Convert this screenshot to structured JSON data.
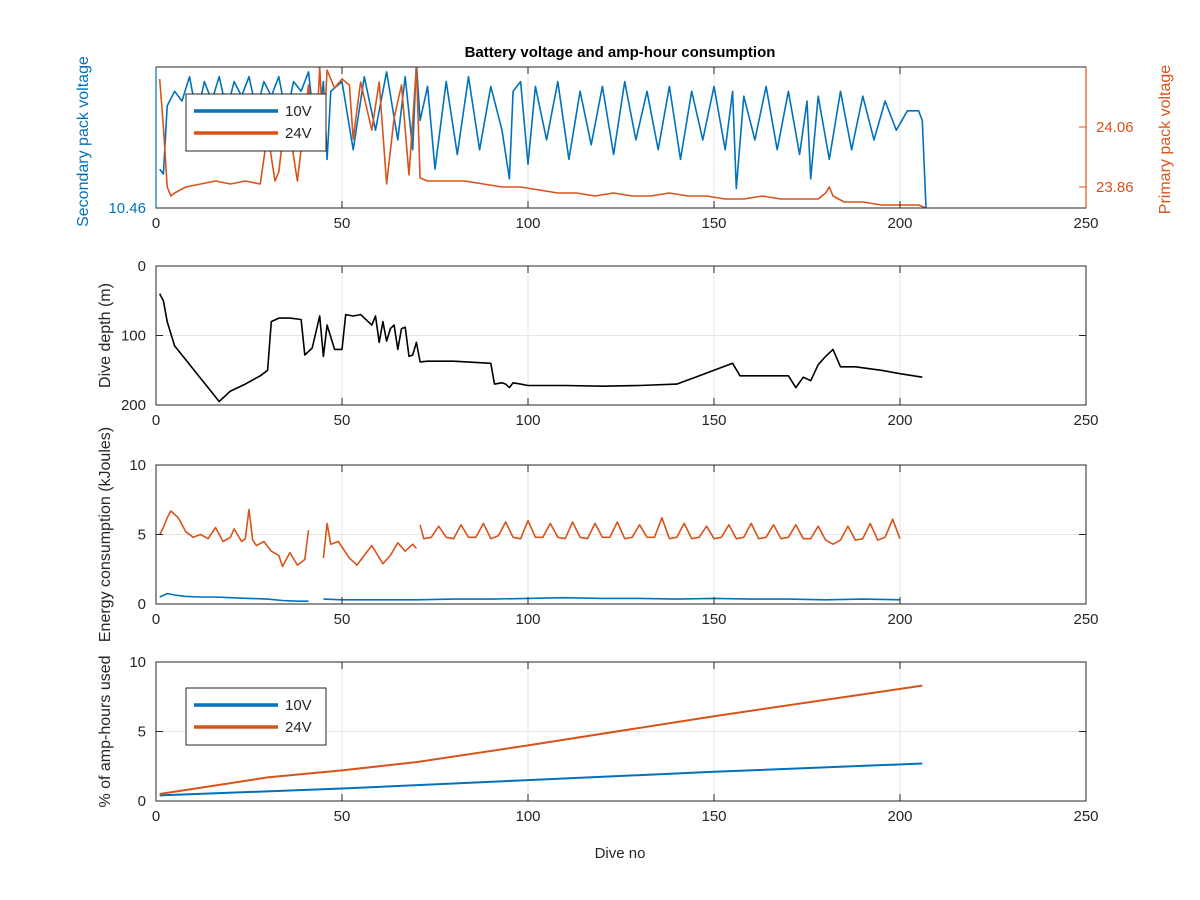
{
  "figure": {
    "title": "Battery voltage and amp-hour consumption",
    "xlabel": "Dive no"
  },
  "colors": {
    "series_10v": "#0072bd",
    "series_24v": "#d95319",
    "depth": "#000000",
    "grid": "#e6e6e6",
    "axes": "#262626"
  },
  "chart_data": [
    {
      "id": "voltage",
      "type": "line",
      "title": "Battery voltage and amp-hour consumption",
      "xlim": [
        0,
        250
      ],
      "xticks": [
        "0",
        "50",
        "100",
        "150",
        "200",
        "250"
      ],
      "ylabel_left": "Secondary pack voltage",
      "ylabel_right": "Primary pack voltage",
      "ylim_left": [
        10.46,
        10.75
      ],
      "yticks_left": [
        "10.46"
      ],
      "ylim_right": [
        23.79,
        24.26
      ],
      "yticks_right": [
        "24.06",
        "23.86"
      ],
      "grid": true,
      "legend": {
        "placement": "top-left",
        "entries": [
          "10V",
          "24V"
        ]
      },
      "series": [
        {
          "name": "10V",
          "axis": "left",
          "x": [
            1,
            2,
            3,
            5,
            7,
            9,
            11,
            13,
            15,
            17,
            19,
            21,
            23,
            25,
            27,
            29,
            31,
            33,
            35,
            37,
            39,
            41,
            43,
            45,
            46,
            47,
            50,
            53,
            56,
            59,
            62,
            65,
            67,
            69,
            70,
            71,
            73,
            75,
            78,
            81,
            84,
            87,
            90,
            93,
            95,
            96,
            98,
            100,
            102,
            105,
            108,
            111,
            114,
            117,
            120,
            123,
            126,
            129,
            132,
            135,
            138,
            141,
            144,
            147,
            150,
            153,
            155,
            156,
            158,
            161,
            164,
            167,
            170,
            173,
            175,
            176,
            178,
            181,
            184,
            187,
            190,
            193,
            196,
            199,
            202,
            205,
            206,
            207
          ],
          "values": [
            10.54,
            10.53,
            10.67,
            10.7,
            10.68,
            10.73,
            10.65,
            10.72,
            10.68,
            10.73,
            10.66,
            10.72,
            10.69,
            10.73,
            10.66,
            10.72,
            10.69,
            10.73,
            10.65,
            10.72,
            10.7,
            10.74,
            10.6,
            10.72,
            10.56,
            10.7,
            10.72,
            10.58,
            10.73,
            10.62,
            10.74,
            10.6,
            10.73,
            10.58,
            10.76,
            10.64,
            10.71,
            10.54,
            10.72,
            10.57,
            10.73,
            10.58,
            10.71,
            10.62,
            10.52,
            10.7,
            10.72,
            10.55,
            10.71,
            10.6,
            10.72,
            10.56,
            10.7,
            10.59,
            10.71,
            10.57,
            10.72,
            10.6,
            10.7,
            10.58,
            10.71,
            10.56,
            10.7,
            10.6,
            10.71,
            10.58,
            10.7,
            10.5,
            10.69,
            10.6,
            10.71,
            10.58,
            10.7,
            10.57,
            10.68,
            10.52,
            10.69,
            10.56,
            10.7,
            10.58,
            10.69,
            10.6,
            10.68,
            10.62,
            10.66,
            10.66,
            10.64,
            10.46
          ]
        },
        {
          "name": "24V",
          "axis": "right",
          "x": [
            1,
            2,
            3,
            4,
            5,
            8,
            12,
            16,
            20,
            24,
            28,
            30,
            32,
            33,
            35,
            38,
            41,
            43,
            44,
            45,
            46,
            48,
            50,
            52,
            53,
            55,
            58,
            60,
            62,
            64,
            66,
            68,
            70,
            71,
            73,
            78,
            83,
            88,
            93,
            98,
            103,
            108,
            113,
            118,
            123,
            128,
            133,
            138,
            143,
            148,
            153,
            158,
            163,
            168,
            173,
            178,
            180,
            181,
            182,
            185,
            190,
            195,
            200,
            205,
            207
          ],
          "values": [
            24.22,
            24.06,
            23.86,
            23.83,
            23.84,
            23.86,
            23.87,
            23.88,
            23.87,
            23.88,
            23.87,
            24.04,
            23.88,
            23.91,
            24.12,
            23.88,
            24.2,
            24.0,
            24.26,
            24.02,
            24.25,
            24.19,
            24.22,
            24.2,
            24.02,
            24.21,
            24.05,
            24.21,
            23.87,
            24.09,
            24.2,
            23.9,
            24.26,
            23.89,
            23.88,
            23.88,
            23.88,
            23.87,
            23.86,
            23.86,
            23.85,
            23.84,
            23.84,
            23.83,
            23.84,
            23.83,
            23.83,
            23.84,
            23.83,
            23.83,
            23.82,
            23.82,
            23.83,
            23.82,
            23.82,
            23.82,
            23.84,
            23.86,
            23.83,
            23.81,
            23.81,
            23.8,
            23.8,
            23.8,
            23.79
          ]
        }
      ]
    },
    {
      "id": "depth",
      "type": "line",
      "ylabel": "Dive depth (m)",
      "xlim": [
        0,
        250
      ],
      "xticks": [
        "0",
        "50",
        "100",
        "150",
        "200",
        "250"
      ],
      "ylim": [
        0,
        200
      ],
      "y_reversed": true,
      "yticks": [
        "0",
        "100",
        "200"
      ],
      "grid": true,
      "series": [
        {
          "name": "",
          "x": [
            1,
            2,
            3,
            5,
            8,
            11,
            14,
            17,
            20,
            24,
            28,
            30,
            31,
            33,
            36,
            39,
            40,
            42,
            44,
            45,
            46,
            48,
            50,
            51,
            53,
            55,
            58,
            59,
            60,
            61,
            62,
            63,
            64,
            65,
            66,
            67,
            68,
            69,
            70,
            71,
            73,
            80,
            90,
            91,
            93,
            94,
            95,
            96,
            98,
            100,
            110,
            120,
            130,
            140,
            145,
            150,
            155,
            157,
            159,
            165,
            170,
            172,
            174,
            176,
            178,
            180,
            182,
            184,
            188,
            195,
            200,
            206
          ],
          "values": [
            40,
            50,
            80,
            115,
            135,
            155,
            175,
            195,
            180,
            170,
            158,
            150,
            80,
            75,
            75,
            77,
            128,
            118,
            72,
            130,
            85,
            120,
            120,
            70,
            72,
            70,
            85,
            72,
            110,
            80,
            108,
            90,
            85,
            120,
            90,
            88,
            130,
            128,
            110,
            138,
            137,
            137,
            140,
            170,
            168,
            170,
            175,
            168,
            170,
            172,
            172,
            173,
            172,
            170,
            160,
            150,
            140,
            158,
            158,
            158,
            158,
            175,
            160,
            165,
            142,
            130,
            120,
            145,
            145,
            150,
            155,
            160
          ]
        }
      ]
    },
    {
      "id": "energy",
      "type": "line",
      "ylabel": "Energy consumption (kJoules)",
      "xlim": [
        0,
        250
      ],
      "xticks": [
        "0",
        "50",
        "100",
        "150",
        "200",
        "250"
      ],
      "ylim": [
        0,
        10
      ],
      "yticks": [
        "0",
        "5",
        "10"
      ],
      "grid": true,
      "series": [
        {
          "name": "10V",
          "segments": [
            {
              "x": [
                1,
                3,
                5,
                8,
                12,
                16,
                20,
                25,
                30,
                34,
                38,
                41
              ],
              "values": [
                0.5,
                0.75,
                0.65,
                0.55,
                0.5,
                0.5,
                0.45,
                0.4,
                0.35,
                0.25,
                0.2,
                0.2
              ]
            },
            {
              "x": [
                45,
                50,
                60,
                70,
                80,
                90,
                100,
                110,
                120,
                130,
                140,
                150,
                160,
                170,
                180,
                190,
                200
              ],
              "values": [
                0.35,
                0.3,
                0.3,
                0.3,
                0.35,
                0.35,
                0.4,
                0.45,
                0.4,
                0.4,
                0.35,
                0.4,
                0.35,
                0.35,
                0.3,
                0.35,
                0.3
              ]
            }
          ]
        },
        {
          "name": "24V",
          "segments": [
            {
              "x": [
                1,
                2,
                3,
                4,
                6,
                8,
                10,
                12,
                14,
                16,
                18,
                20,
                21,
                23,
                24,
                25,
                26,
                27,
                29,
                31,
                33,
                34,
                35,
                36,
                38,
                40,
                41
              ],
              "values": [
                5.0,
                5.5,
                6.2,
                6.7,
                6.2,
                5.2,
                4.8,
                5.0,
                4.7,
                5.5,
                4.5,
                4.8,
                5.4,
                4.5,
                4.7,
                6.8,
                4.6,
                4.2,
                4.5,
                3.8,
                3.5,
                2.7,
                3.2,
                3.7,
                2.8,
                3.2,
                5.3
              ]
            },
            {
              "x": [
                45,
                46,
                47,
                49,
                52,
                54,
                56,
                58,
                61,
                63,
                65,
                67,
                69,
                70
              ],
              "values": [
                3.3,
                5.8,
                4.3,
                4.5,
                3.3,
                2.8,
                3.5,
                4.2,
                2.9,
                3.5,
                4.4,
                3.8,
                4.3,
                4.0
              ]
            },
            {
              "x": [
                71,
                72,
                74,
                76,
                78,
                80,
                82,
                84,
                86,
                88,
                90,
                92,
                94,
                96,
                98,
                100,
                102,
                104,
                106,
                108,
                110,
                112,
                114,
                116,
                118,
                120,
                122,
                124,
                126,
                128,
                130,
                132,
                134,
                136,
                138,
                140,
                142,
                144,
                146,
                148,
                150,
                152,
                154,
                156,
                158,
                160,
                162,
                164,
                166,
                168,
                170,
                172,
                174,
                176,
                178,
                180,
                182,
                184,
                186,
                188,
                190,
                192,
                194,
                196,
                198,
                200
              ],
              "values": [
                5.7,
                4.7,
                4.8,
                5.6,
                4.8,
                4.7,
                5.7,
                4.8,
                4.8,
                5.8,
                4.7,
                4.9,
                5.9,
                4.8,
                4.7,
                6.0,
                4.8,
                4.8,
                5.8,
                4.8,
                4.7,
                5.9,
                4.8,
                4.7,
                5.8,
                4.8,
                4.8,
                5.9,
                4.7,
                4.8,
                5.7,
                4.8,
                4.8,
                6.2,
                4.7,
                4.8,
                5.8,
                4.7,
                4.8,
                5.6,
                4.7,
                4.8,
                5.7,
                4.7,
                4.8,
                5.8,
                4.7,
                4.8,
                5.7,
                4.7,
                4.8,
                5.7,
                4.7,
                4.7,
                5.6,
                4.6,
                4.3,
                4.6,
                5.6,
                4.6,
                4.7,
                5.8,
                4.6,
                4.8,
                6.1,
                4.7
              ]
            }
          ]
        }
      ]
    },
    {
      "id": "amphours",
      "type": "line",
      "ylabel": "% of amp-hours used",
      "xlabel": "Dive no",
      "xlim": [
        0,
        250
      ],
      "xticks": [
        "0",
        "50",
        "100",
        "150",
        "200",
        "250"
      ],
      "ylim": [
        0,
        10
      ],
      "yticks": [
        "0",
        "5",
        "10"
      ],
      "grid": true,
      "legend": {
        "placement": "top-left",
        "entries": [
          "10V",
          "24V"
        ]
      },
      "series": [
        {
          "name": "10V",
          "x": [
            1,
            50,
            100,
            150,
            206
          ],
          "values": [
            0.4,
            0.9,
            1.5,
            2.1,
            2.7
          ]
        },
        {
          "name": "24V",
          "x": [
            1,
            30,
            50,
            70,
            100,
            150,
            206
          ],
          "values": [
            0.5,
            1.7,
            2.2,
            2.8,
            4.0,
            6.1,
            8.3
          ]
        }
      ]
    }
  ]
}
